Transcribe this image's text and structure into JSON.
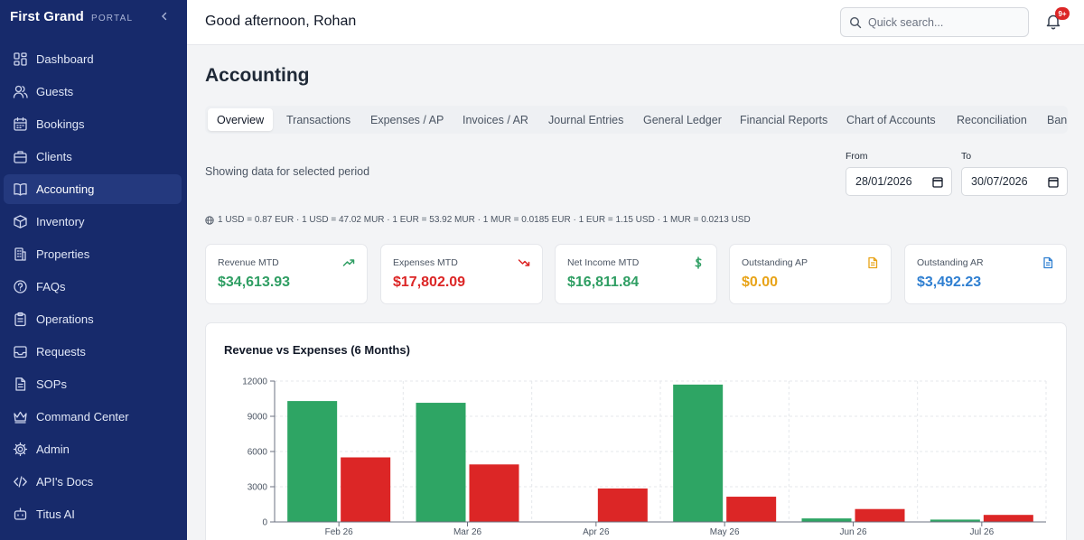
{
  "sidebar": {
    "brand": "First Grand",
    "brand_sub": "PORTAL",
    "items": [
      {
        "label": "Dashboard",
        "icon": "grid-icon"
      },
      {
        "label": "Guests",
        "icon": "users-icon"
      },
      {
        "label": "Bookings",
        "icon": "calendar-icon"
      },
      {
        "label": "Clients",
        "icon": "briefcase-icon"
      },
      {
        "label": "Accounting",
        "icon": "book-icon"
      },
      {
        "label": "Inventory",
        "icon": "box-icon"
      },
      {
        "label": "Properties",
        "icon": "building-icon"
      },
      {
        "label": "FAQs",
        "icon": "help-circle-icon"
      },
      {
        "label": "Operations",
        "icon": "clipboard-icon"
      },
      {
        "label": "Requests",
        "icon": "inbox-icon"
      },
      {
        "label": "SOPs",
        "icon": "file-text-icon"
      },
      {
        "label": "Command Center",
        "icon": "crown-icon"
      },
      {
        "label": "Admin",
        "icon": "gear-icon"
      },
      {
        "label": "API's Docs",
        "icon": "code-icon"
      },
      {
        "label": "Titus AI",
        "icon": "bot-icon"
      }
    ],
    "active": "Accounting"
  },
  "header": {
    "greeting": "Good afternoon, Rohan",
    "search_placeholder": "Quick search...",
    "notification_badge": "9+"
  },
  "page": {
    "title": "Accounting",
    "tabs": [
      "Overview",
      "Transactions",
      "Expenses / AP",
      "Invoices / AR",
      "Journal Entries",
      "General Ledger",
      "Financial Reports",
      "Chart of Accounts",
      "Reconciliation",
      "Bank"
    ],
    "active_tab": "Overview",
    "period_text": "Showing data for selected period",
    "from_label": "From",
    "from_value": "28/01/2026",
    "to_label": "To",
    "to_value": "30/07/2026",
    "rates": "1 USD = 0.87 EUR · 1 USD = 47.02 MUR · 1 EUR = 53.92 MUR · 1 MUR = 0.0185 EUR · 1 EUR = 1.15 USD · 1 MUR = 0.0213 USD"
  },
  "cards": [
    {
      "label": "Revenue MTD",
      "value": "$34,613.93",
      "color": "#2f9e63",
      "icon": "trending-up-icon"
    },
    {
      "label": "Expenses MTD",
      "value": "$17,802.09",
      "color": "#dc2626",
      "icon": "trending-down-icon"
    },
    {
      "label": "Net Income MTD",
      "value": "$16,811.84",
      "color": "#2f9e63",
      "icon": "dollar-icon"
    },
    {
      "label": "Outstanding AP",
      "value": "$0.00",
      "color": "#e8a317",
      "icon": "file-icon"
    },
    {
      "label": "Outstanding AR",
      "value": "$3,492.23",
      "color": "#2f7fd1",
      "icon": "file-icon"
    }
  ],
  "chart_data": {
    "type": "bar",
    "title": "Revenue vs Expenses (6 Months)",
    "categories": [
      "Feb 26",
      "Mar 26",
      "Apr 26",
      "May 26",
      "Jun 26",
      "Jul 26"
    ],
    "series": [
      {
        "values": [
          10300,
          10150,
          0,
          11700,
          300,
          200
        ],
        "color": "#2ea564"
      },
      {
        "values": [
          5500,
          4900,
          2850,
          2150,
          1100,
          600
        ],
        "color": "#dc2626"
      }
    ],
    "yticks": [
      "0",
      "3000",
      "6000",
      "9000",
      "12000"
    ],
    "ylim": [
      0,
      12000
    ],
    "grid": true,
    "grid_style": "dashed"
  }
}
